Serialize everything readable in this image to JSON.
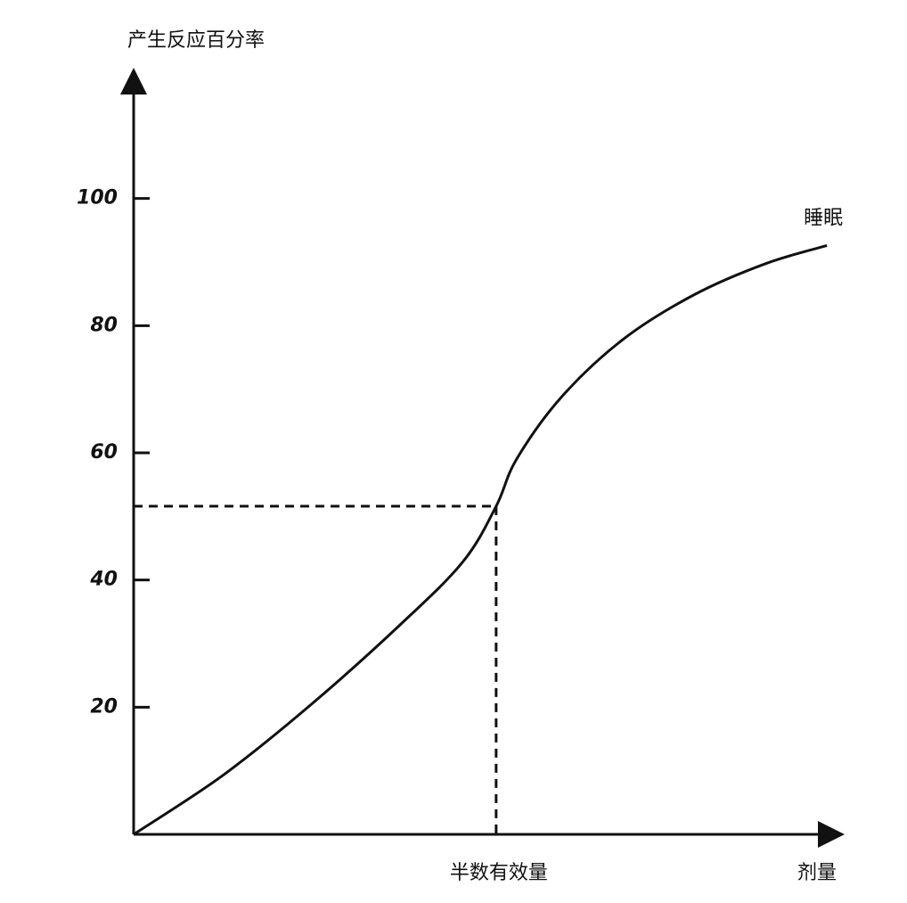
{
  "chart_data": {
    "type": "line",
    "y_label": "产生反应百分率",
    "x_label": "剂量",
    "x": [
      0,
      12.7,
      25.3,
      38,
      46.8,
      51.5,
      54.4,
      60.8,
      69.6,
      79.7,
      89.9,
      98.5
    ],
    "series": [
      {
        "name": "睡眠",
        "color": "#111111",
        "values": [
          0,
          9.3,
          20.5,
          33.1,
          42.9,
          51.6,
          59.0,
          68.8,
          77.9,
          84.9,
          89.8,
          92.6
        ]
      }
    ],
    "xlim": [
      0,
      100
    ],
    "ylim": [
      0,
      120
    ],
    "yticks": [
      20,
      40,
      60,
      80,
      100
    ],
    "reference": {
      "x": 51.5,
      "y": 51.6,
      "label": "半数有效量"
    }
  }
}
